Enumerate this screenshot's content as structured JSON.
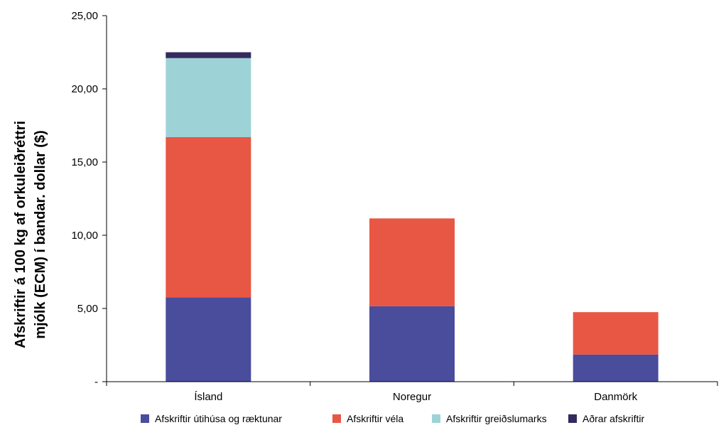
{
  "chart_data": {
    "type": "bar",
    "stacked": true,
    "title": "",
    "xlabel": "",
    "ylabel": "Afskriftir á 100 kg af orkuleiðréttri mjólk (ECM) í bandar. dollar ($)",
    "ylabel_lines": [
      "Afskriftir á 100 kg af orkuleiðréttri",
      "mjólk (ECM) í bandar. dollar ($)"
    ],
    "ylim": [
      0,
      25
    ],
    "yticks": [
      {
        "value": 0,
        "label": "-"
      },
      {
        "value": 5,
        "label": "5,00"
      },
      {
        "value": 10,
        "label": "10,00"
      },
      {
        "value": 15,
        "label": "15,00"
      },
      {
        "value": 20,
        "label": "20,00"
      },
      {
        "value": 25,
        "label": "25,00"
      }
    ],
    "categories": [
      "Ísland",
      "Noregur",
      "Danmörk"
    ],
    "series": [
      {
        "name": "Afskriftir útihúsa og ræktunar",
        "color": "#4a4c9c",
        "values": [
          5.75,
          5.15,
          1.85
        ]
      },
      {
        "name": "Afskriftir véla",
        "color": "#e85744",
        "values": [
          10.95,
          6.0,
          2.9
        ]
      },
      {
        "name": "Afskriftir greiðslumarks",
        "color": "#9dd3d6",
        "values": [
          5.4,
          0,
          0
        ]
      },
      {
        "name": "Aðrar afskriftir",
        "color": "#342a5e",
        "values": [
          0.4,
          0,
          0
        ]
      }
    ],
    "grid": false,
    "legend": "bottom"
  }
}
